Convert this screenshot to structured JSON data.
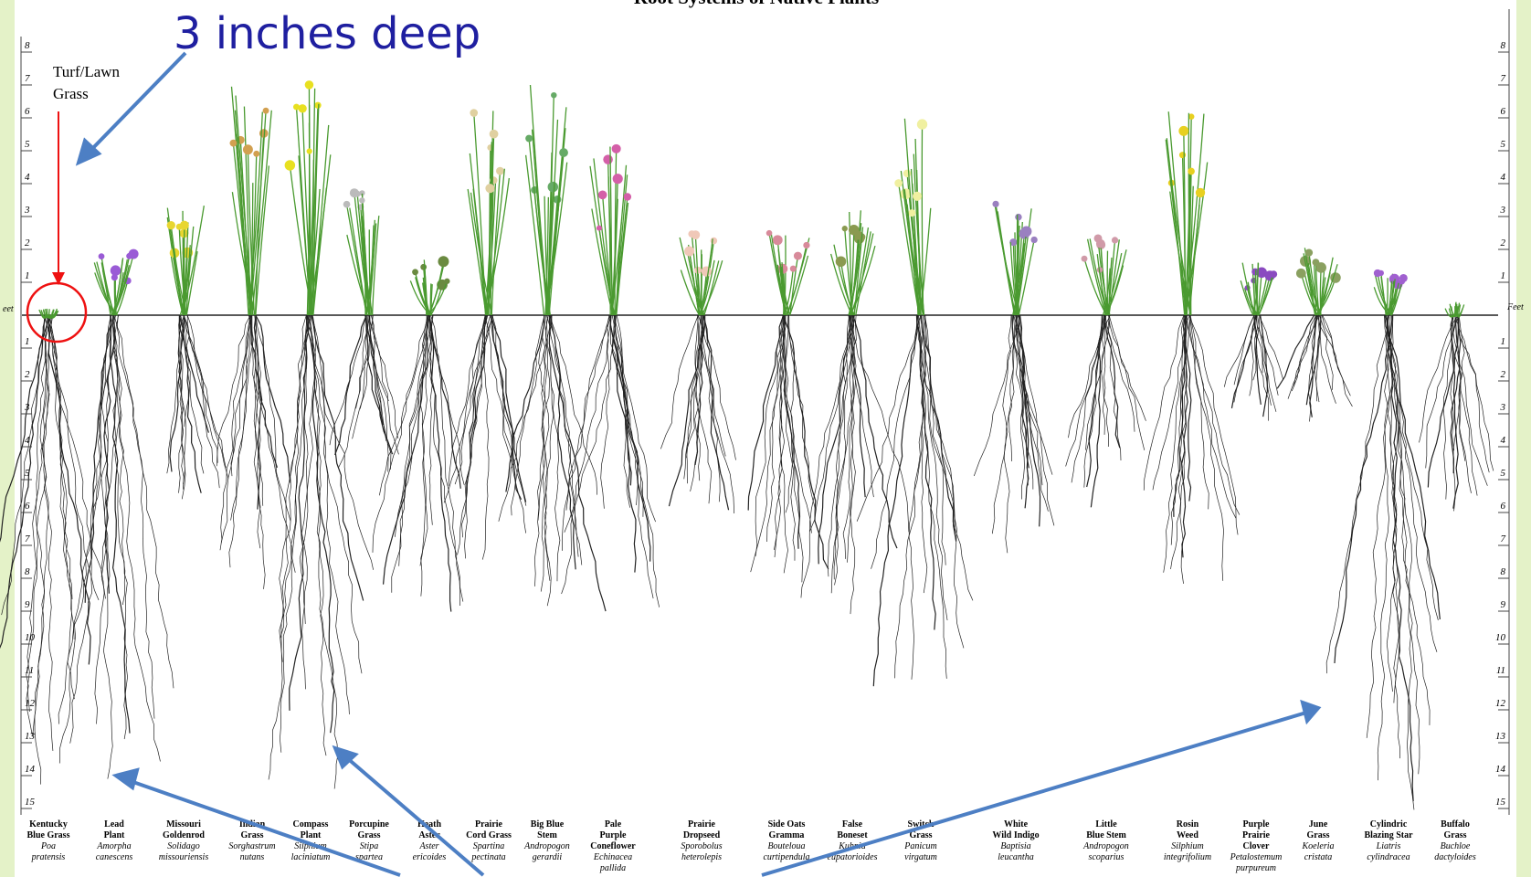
{
  "title": "Root Systems of Native Plants",
  "callout": "3 inches deep",
  "turf_label": [
    "Turf/Lawn",
    "Grass"
  ],
  "scale": {
    "unit": "Feet",
    "above": [
      8,
      7,
      6,
      5,
      4,
      3,
      2,
      1
    ],
    "below": [
      1,
      2,
      3,
      4,
      5,
      6,
      7,
      8,
      9,
      10,
      11,
      12,
      13,
      14,
      15
    ]
  },
  "plants": [
    {
      "common": [
        "Kentucky",
        "Blue Grass"
      ],
      "scientific": [
        "Poa",
        "pratensis"
      ]
    },
    {
      "common": [
        "Lead",
        "Plant"
      ],
      "scientific": [
        "Amorpha",
        "canescens"
      ]
    },
    {
      "common": [
        "Missouri",
        "Goldenrod"
      ],
      "scientific": [
        "Solidago",
        "missouriensis"
      ]
    },
    {
      "common": [
        "Indian",
        "Grass"
      ],
      "scientific": [
        "Sorghastrum",
        "nutans"
      ]
    },
    {
      "common": [
        "Compass",
        "Plant"
      ],
      "scientific": [
        "Silphium",
        "laciniatum"
      ]
    },
    {
      "common": [
        "Porcupine",
        "Grass"
      ],
      "scientific": [
        "Stipa",
        "spartea"
      ]
    },
    {
      "common": [
        "Heath",
        "Aster"
      ],
      "scientific": [
        "Aster",
        "ericoides"
      ]
    },
    {
      "common": [
        "Prairie",
        "Cord Grass"
      ],
      "scientific": [
        "Spartina",
        "pectinata"
      ]
    },
    {
      "common": [
        "Big Blue",
        "Stem"
      ],
      "scientific": [
        "Andropogon",
        "gerardii"
      ]
    },
    {
      "common": [
        "Pale",
        "Purple",
        "Coneflower"
      ],
      "scientific": [
        "Echinacea",
        "pallida"
      ]
    },
    {
      "common": [
        "Prairie",
        "Dropseed"
      ],
      "scientific": [
        "Sporobolus",
        "heterolepis"
      ]
    },
    {
      "common": [
        "Side Oats",
        "Gramma"
      ],
      "scientific": [
        "Bouteloua",
        "curtipendula"
      ]
    },
    {
      "common": [
        "False",
        "Boneset"
      ],
      "scientific": [
        "Kuhnia",
        "eupatorioides"
      ]
    },
    {
      "common": [
        "Switch",
        "Grass"
      ],
      "scientific": [
        "Panicum",
        "virgatum"
      ]
    },
    {
      "common": [
        "White",
        "Wild Indigo"
      ],
      "scientific": [
        "Baptisia",
        "leucantha"
      ]
    },
    {
      "common": [
        "Little",
        "Blue Stem"
      ],
      "scientific": [
        "Andropogon",
        "scoparius"
      ]
    },
    {
      "common": [
        "Rosin",
        "Weed"
      ],
      "scientific": [
        "Silphium",
        "integrifolium"
      ]
    },
    {
      "common": [
        "Purple",
        "Prairie",
        "Clover"
      ],
      "scientific": [
        "Petalostemum",
        "purpureum"
      ]
    },
    {
      "common": [
        "June",
        "Grass"
      ],
      "scientific": [
        "Koeleria",
        "cristata"
      ]
    },
    {
      "common": [
        "Cylindric",
        "Blazing Star"
      ],
      "scientific": [
        "Liatris",
        "cylindracea"
      ]
    },
    {
      "common": [
        "Buffalo",
        "Grass"
      ],
      "scientific": [
        "Buchloe",
        "dactyloides"
      ]
    }
  ]
}
